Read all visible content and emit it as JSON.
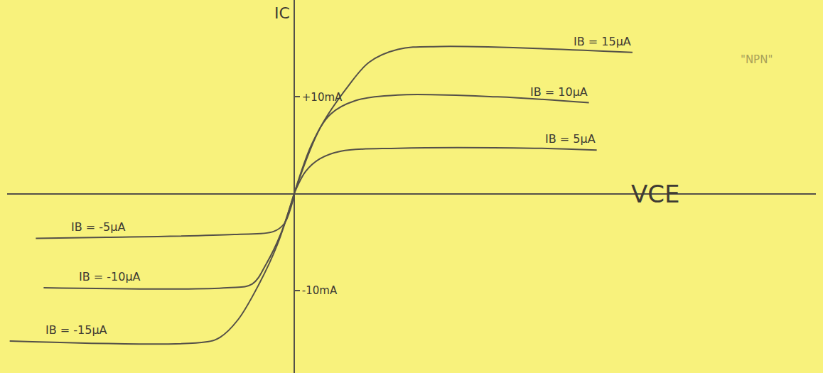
{
  "chart_data": {
    "type": "line",
    "x_label": "VCE",
    "y_label": "IC",
    "annotations": [
      "\"NPN\""
    ],
    "color": "#545048",
    "line_style": "solid",
    "grid": false,
    "tick_labels": "y",
    "xlim": [
      -11,
      20
    ],
    "ylim": [
      -18.5,
      20
    ],
    "xticks": [],
    "yticks": [
      {
        "value": 10,
        "label": "+10mA"
      },
      {
        "value": -10,
        "label": "-10mA"
      }
    ],
    "series": [
      {
        "name": "IB = 15μA",
        "x": [
          0,
          0.98,
          2.07,
          2.89,
          3.98,
          5.6,
          12.97
        ],
        "values": [
          0,
          6.7,
          11.1,
          13.6,
          14.9,
          15.2,
          14.6
        ]
      },
      {
        "name": "IB = 10μA",
        "x": [
          0,
          0.71,
          1.39,
          2.34,
          3.98,
          7.8,
          11.3
        ],
        "values": [
          0,
          5.3,
          8.2,
          9.6,
          10.2,
          10.0,
          9.4
        ]
      },
      {
        "name": "IB = 5μA",
        "x": [
          0,
          0.44,
          0.98,
          1.8,
          3.98,
          9.2,
          11.6
        ],
        "values": [
          0,
          2.3,
          3.6,
          4.4,
          4.7,
          4.7,
          4.5
        ]
      },
      {
        "name": "IB = -5μA",
        "x": [
          0,
          -0.11,
          -0.38,
          -0.79,
          -2.3,
          -7.2,
          -9.9
        ],
        "values": [
          0,
          -1.3,
          -3.1,
          -3.9,
          -4.2,
          -4.5,
          -4.6
        ]
      },
      {
        "name": "IB = -10μA",
        "x": [
          0,
          -0.52,
          -1.06,
          -1.6,
          -2.56,
          -9.6
        ],
        "values": [
          0,
          -4.2,
          -7.2,
          -9.3,
          -9.7,
          -9.7
        ]
      },
      {
        "name": "IB = -15μA",
        "x": [
          0,
          -0.65,
          -1.34,
          -2.15,
          -2.83,
          -3.38,
          -10.9
        ],
        "values": [
          0,
          -5.3,
          -9.3,
          -13.0,
          -14.8,
          -15.3,
          -15.2
        ]
      }
    ]
  }
}
